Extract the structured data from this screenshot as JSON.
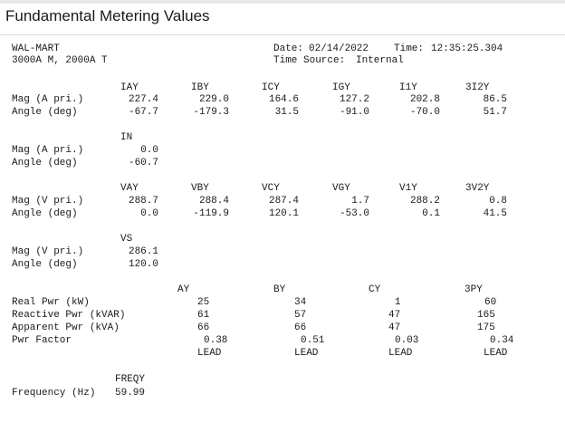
{
  "title": "Fundamental Metering Values",
  "header": {
    "site": "WAL-MART",
    "rating": "3000A M, 2000A T",
    "date_label": "Date:",
    "date": "02/14/2022",
    "time_label": "Time:",
    "time": "12:35:25.304",
    "time_source_label": "Time Source:",
    "time_source": "Internal"
  },
  "current": {
    "cols": [
      "IAY",
      "IBY",
      "ICY",
      "IGY",
      "I1Y",
      "3I2Y"
    ],
    "mag_label": "Mag (A pri.)",
    "angle_label": "Angle (deg)",
    "mag": [
      "227.4",
      "229.0",
      "164.6",
      "127.2",
      "202.8",
      "86.5"
    ],
    "angle": [
      "-67.7",
      "-179.3",
      "31.5",
      "-91.0",
      "-70.0",
      "51.7"
    ]
  },
  "neutral": {
    "col": "IN",
    "mag_label": "Mag (A pri.)",
    "angle_label": "Angle (deg)",
    "mag": "0.0",
    "angle": "-60.7"
  },
  "voltage": {
    "cols": [
      "VAY",
      "VBY",
      "VCY",
      "VGY",
      "V1Y",
      "3V2Y"
    ],
    "mag_label": "Mag (V pri.)",
    "angle_label": "Angle (deg)",
    "mag": [
      "288.7",
      "288.4",
      "287.4",
      "1.7",
      "288.2",
      "0.8"
    ],
    "angle": [
      "0.0",
      "-119.9",
      "120.1",
      "-53.0",
      "0.1",
      "41.5"
    ]
  },
  "sync": {
    "col": "VS",
    "mag_label": "Mag (V pri.)",
    "angle_label": "Angle (deg)",
    "mag": "286.1",
    "angle": "120.0"
  },
  "power": {
    "cols": [
      "AY",
      "BY",
      "CY",
      "3PY"
    ],
    "real_label": "Real Pwr (kW)",
    "reactive_label": "Reactive Pwr (kVAR)",
    "apparent_label": "Apparent Pwr (kVA)",
    "pf_label": "Pwr Factor",
    "real": [
      "25",
      "34",
      "1",
      "60"
    ],
    "reactive": [
      "61",
      "57",
      "47",
      "165"
    ],
    "apparent": [
      "66",
      "66",
      "47",
      "175"
    ],
    "pf": [
      "0.38",
      "0.51",
      "0.03",
      "0.34"
    ],
    "pf_type": [
      "LEAD",
      "LEAD",
      "LEAD",
      "LEAD"
    ]
  },
  "frequency": {
    "col": "FREQY",
    "label": "Frequency (Hz)",
    "value": "59.99"
  }
}
